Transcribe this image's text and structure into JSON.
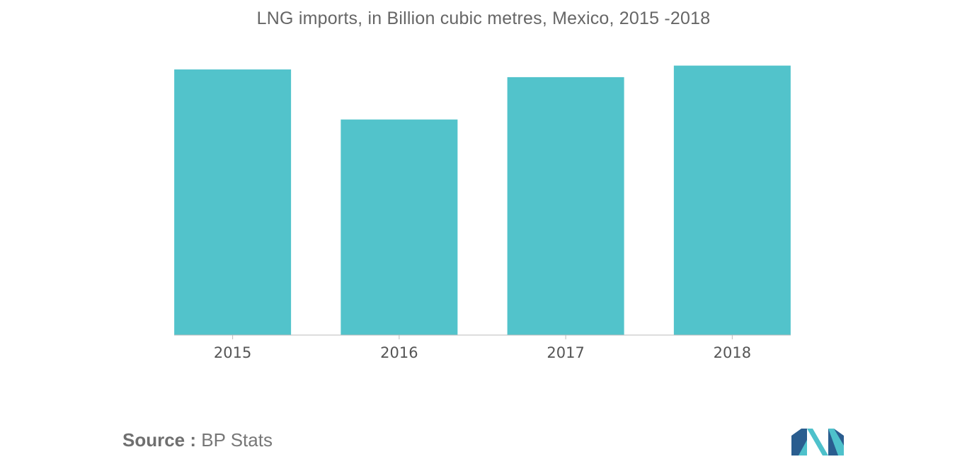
{
  "chart_data": {
    "type": "bar",
    "title": "LNG imports, in Billion cubic metres, Mexico, 2015 -2018",
    "categories": [
      "2015",
      "2016",
      "2017",
      "2018"
    ],
    "values": [
      6.9,
      5.6,
      6.7,
      7.0
    ],
    "xlabel": "",
    "ylabel": "",
    "ylim": [
      0,
      7.6
    ],
    "grid": false,
    "bar_color": "#52c3cb",
    "axis_color": "#bbbbbb"
  },
  "source": {
    "label": "Source :",
    "value": "BP Stats"
  },
  "brand": {
    "logo_icon": "mordor-intelligence-logo-icon",
    "logo_colors": [
      "#2a5d8f",
      "#4ec1cb"
    ]
  }
}
